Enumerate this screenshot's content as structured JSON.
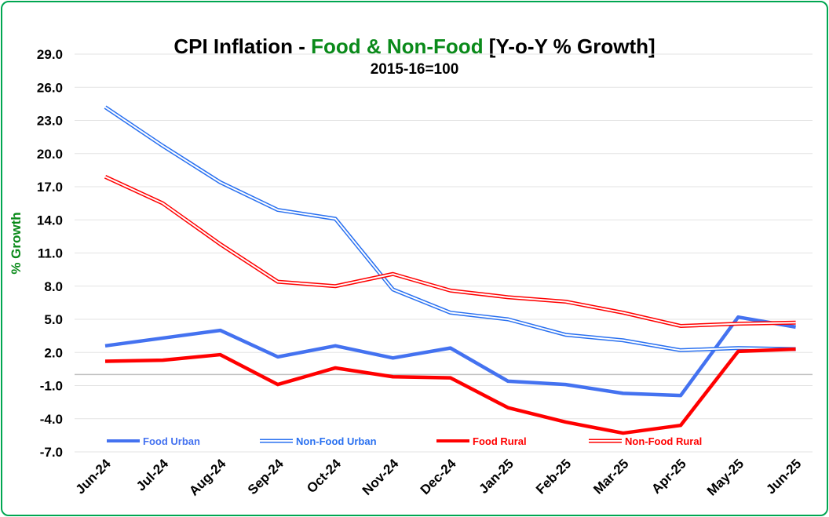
{
  "chart_data": {
    "type": "line",
    "title_part1": "CPI Inflation - ",
    "title_part2": "Food & Non-Food",
    "title_part3": " [Y-o-Y % Growth]",
    "subtitle": "2015-16=100",
    "ylabel": "% Growth",
    "xlabel": "",
    "ylim": [
      -7.0,
      29.0
    ],
    "yticks": [
      "29.0",
      "26.0",
      "23.0",
      "20.0",
      "17.0",
      "14.0",
      "11.0",
      "8.0",
      "5.0",
      "2.0",
      "-1.0",
      "-4.0",
      "-7.0"
    ],
    "ytick_values": [
      29,
      26,
      23,
      20,
      17,
      14,
      11,
      8,
      5,
      2,
      -1,
      -4,
      -7
    ],
    "categories": [
      "Jun-24",
      "Jul-24",
      "Aug-24",
      "Sep-24",
      "Oct-24",
      "Nov-24",
      "Dec-24",
      "Jan-25",
      "Feb-25",
      "Mar-25",
      "Apr-25",
      "May-25",
      "Jun-25"
    ],
    "grid": true,
    "legend_position": "bottom-inside",
    "series": [
      {
        "name": "Food Urban",
        "color": "#4472f0",
        "style": "solid",
        "values": [
          2.6,
          3.3,
          4.0,
          1.6,
          2.6,
          1.5,
          2.4,
          -0.6,
          -0.9,
          -1.7,
          -1.9,
          5.2,
          4.3
        ]
      },
      {
        "name": "Non-Food Urban",
        "color": "#2970f0",
        "style": "double",
        "values": [
          24.2,
          20.7,
          17.4,
          14.9,
          14.1,
          7.7,
          5.6,
          5.0,
          3.6,
          3.1,
          2.2,
          2.4,
          2.3
        ]
      },
      {
        "name": "Food Rural",
        "color": "#ff0000",
        "style": "solid",
        "values": [
          1.2,
          1.3,
          1.8,
          -0.9,
          0.6,
          -0.2,
          -0.3,
          -3.0,
          -4.3,
          -5.3,
          -4.6,
          2.1,
          2.3
        ]
      },
      {
        "name": "Non-Food Rural",
        "color": "#ff0000",
        "style": "double",
        "values": [
          17.9,
          15.5,
          11.8,
          8.4,
          8.0,
          9.1,
          7.6,
          7.0,
          6.6,
          5.6,
          4.4,
          4.6,
          4.7
        ]
      }
    ]
  }
}
